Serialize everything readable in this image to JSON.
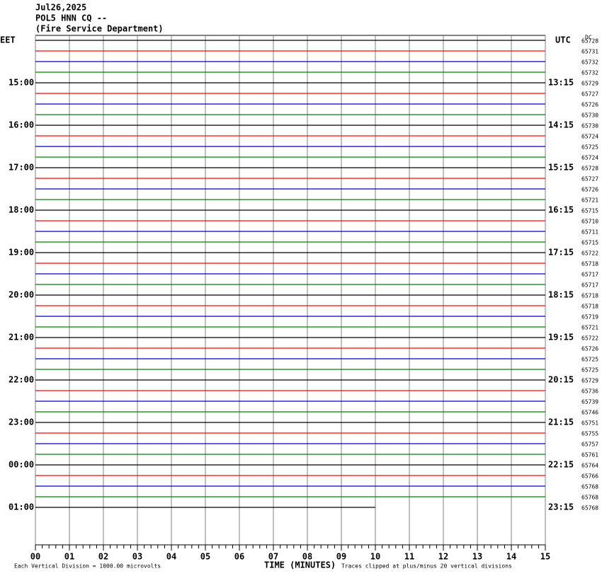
{
  "chart_data": {
    "type": "helicorder",
    "title_lines": [
      "Jul26,2025",
      "POL5 HNN CQ --",
      "(Fire Service Department)"
    ],
    "left_zone": "EET",
    "right_zone": "UTC",
    "dc_label": "DC",
    "colors": [
      "#000000",
      "#ff0000",
      "#0000c0",
      "#008000"
    ],
    "eet_labels": [
      null,
      null,
      null,
      null,
      "15:00",
      null,
      null,
      null,
      "16:00",
      null,
      null,
      null,
      "17:00",
      null,
      null,
      null,
      "18:00",
      null,
      null,
      null,
      "19:00",
      null,
      null,
      null,
      "20:00",
      null,
      null,
      null,
      "21:00",
      null,
      null,
      null,
      "22:00",
      null,
      null,
      null,
      "23:00",
      null,
      null,
      null,
      "00:00",
      null,
      null,
      null,
      "01:00"
    ],
    "utc_labels": [
      null,
      null,
      null,
      null,
      "13:15",
      null,
      null,
      null,
      "14:15",
      null,
      null,
      null,
      "15:15",
      null,
      null,
      null,
      "16:15",
      null,
      null,
      null,
      "17:15",
      null,
      null,
      null,
      "18:15",
      null,
      null,
      null,
      "19:15",
      null,
      null,
      null,
      "20:15",
      null,
      null,
      null,
      "21:15",
      null,
      null,
      null,
      "22:15",
      null,
      null,
      null,
      "23:15"
    ],
    "dc_values": [
      65728,
      65731,
      65732,
      65732,
      65729,
      65727,
      65726,
      65730,
      65730,
      65724,
      65725,
      65724,
      65728,
      65727,
      65726,
      65721,
      65715,
      65710,
      65711,
      65715,
      65722,
      65718,
      65717,
      65717,
      65718,
      65718,
      65719,
      65721,
      65722,
      65726,
      65725,
      65725,
      65729,
      65736,
      65739,
      65746,
      65751,
      65755,
      65757,
      65761,
      65764,
      65766,
      65768,
      65768,
      65768
    ],
    "xlim": [
      0,
      15
    ],
    "xticks": [
      {
        "value": 0,
        "label": "00"
      },
      {
        "value": 1,
        "label": "01"
      },
      {
        "value": 2,
        "label": "02"
      },
      {
        "value": 3,
        "label": "03"
      },
      {
        "value": 4,
        "label": "04"
      },
      {
        "value": 5,
        "label": "05"
      },
      {
        "value": 6,
        "label": "06"
      },
      {
        "value": 7,
        "label": "07"
      },
      {
        "value": 8,
        "label": "08"
      },
      {
        "value": 9,
        "label": "09"
      },
      {
        "value": 10,
        "label": "10"
      },
      {
        "value": 11,
        "label": "11"
      },
      {
        "value": 12,
        "label": "12"
      },
      {
        "value": 13,
        "label": "13"
      },
      {
        "value": 14,
        "label": "14"
      },
      {
        "value": 15,
        "label": "15"
      }
    ],
    "xlabel": "TIME (MINUTES)",
    "scale_note": "Each Vertical Division = 1000.00 microvolts",
    "clip_note": "Traces clipped at plus/minus 20 vertical divisions"
  }
}
